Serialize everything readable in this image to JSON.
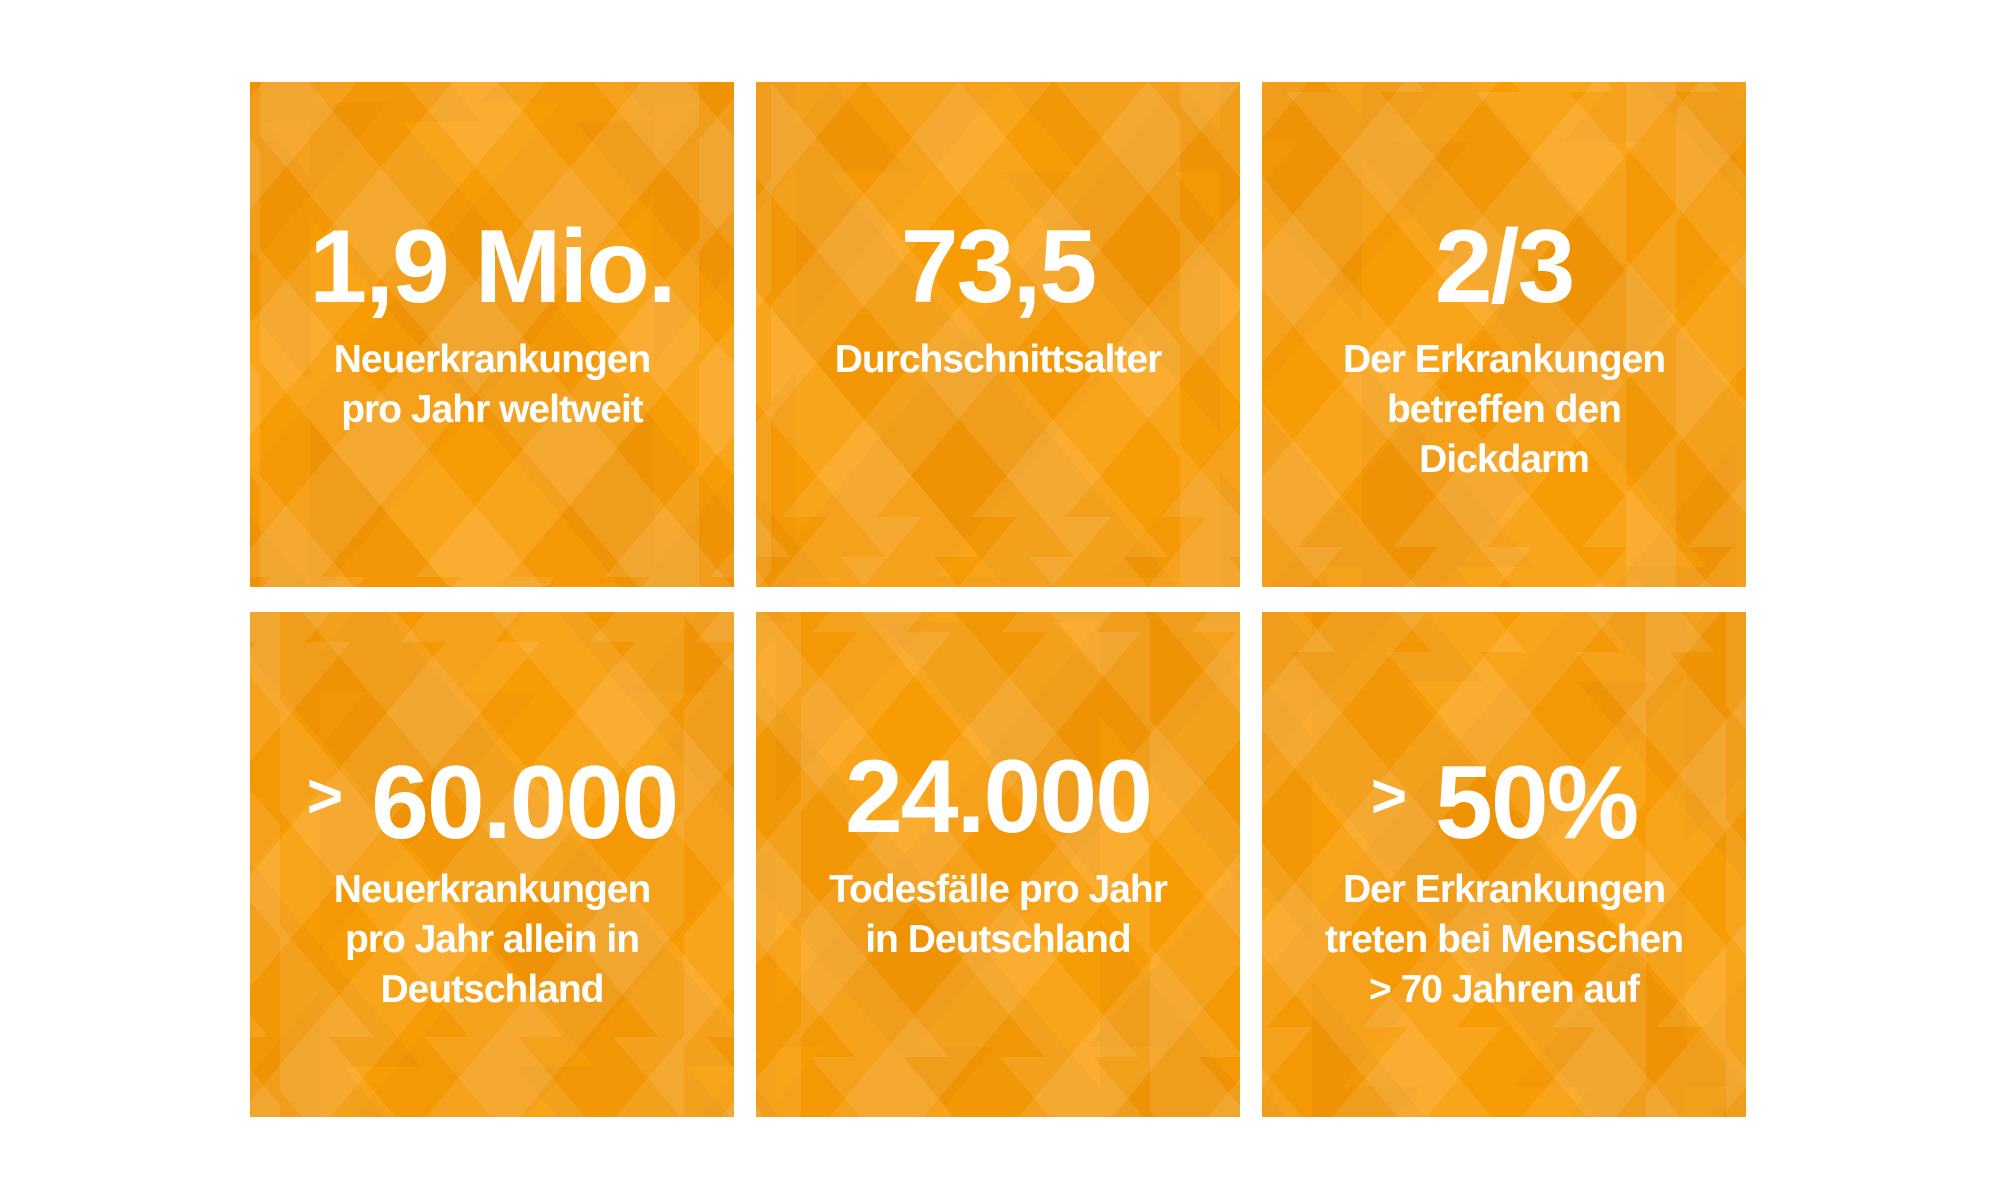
{
  "theme": {
    "page_background": "#FFFFFF",
    "tile_color": "#F89C05",
    "tile_facet_light": "#FAA413",
    "tile_facet_dark": "#F19001",
    "text_color": "#FFFFFF"
  },
  "tiles": [
    {
      "value_prefix": "",
      "value": "1,9 Mio.",
      "label_lines": [
        "Neuerkrankungen",
        "pro Jahr weltweit"
      ]
    },
    {
      "value_prefix": "",
      "value": "73,5",
      "label_lines": [
        "Durchschnittsalter"
      ]
    },
    {
      "value_prefix": "",
      "value": "2/3",
      "label_lines": [
        "Der Erkrankungen",
        "betreffen den",
        "Dickdarm"
      ]
    },
    {
      "value_prefix": ">",
      "value": "60.000",
      "label_lines": [
        "Neuerkrankungen",
        "pro Jahr allein in",
        "Deutschland"
      ]
    },
    {
      "value_prefix": "",
      "value": "24.000",
      "label_lines": [
        "Todesfälle pro Jahr",
        "in Deutschland"
      ]
    },
    {
      "value_prefix": ">",
      "value": "50%",
      "label_lines": [
        "Der Erkrankungen",
        "treten bei Menschen",
        "> 70 Jahren auf"
      ]
    }
  ],
  "chart_data": {
    "type": "table",
    "stats": [
      {
        "value": "1,9 Mio.",
        "label": "Neuerkrankungen pro Jahr weltweit"
      },
      {
        "value": "73,5",
        "label": "Durchschnittsalter"
      },
      {
        "value": "2/3",
        "label": "Der Erkrankungen betreffen den Dickdarm"
      },
      {
        "value": "> 60.000",
        "label": "Neuerkrankungen pro Jahr allein in Deutschland"
      },
      {
        "value": "24.000",
        "label": "Todesfälle pro Jahr in Deutschland"
      },
      {
        "value": "> 50%",
        "label": "Der Erkrankungen treten bei Menschen > 70 Jahren auf"
      }
    ],
    "layout": "2 rows x 3 columns of stat tiles"
  }
}
